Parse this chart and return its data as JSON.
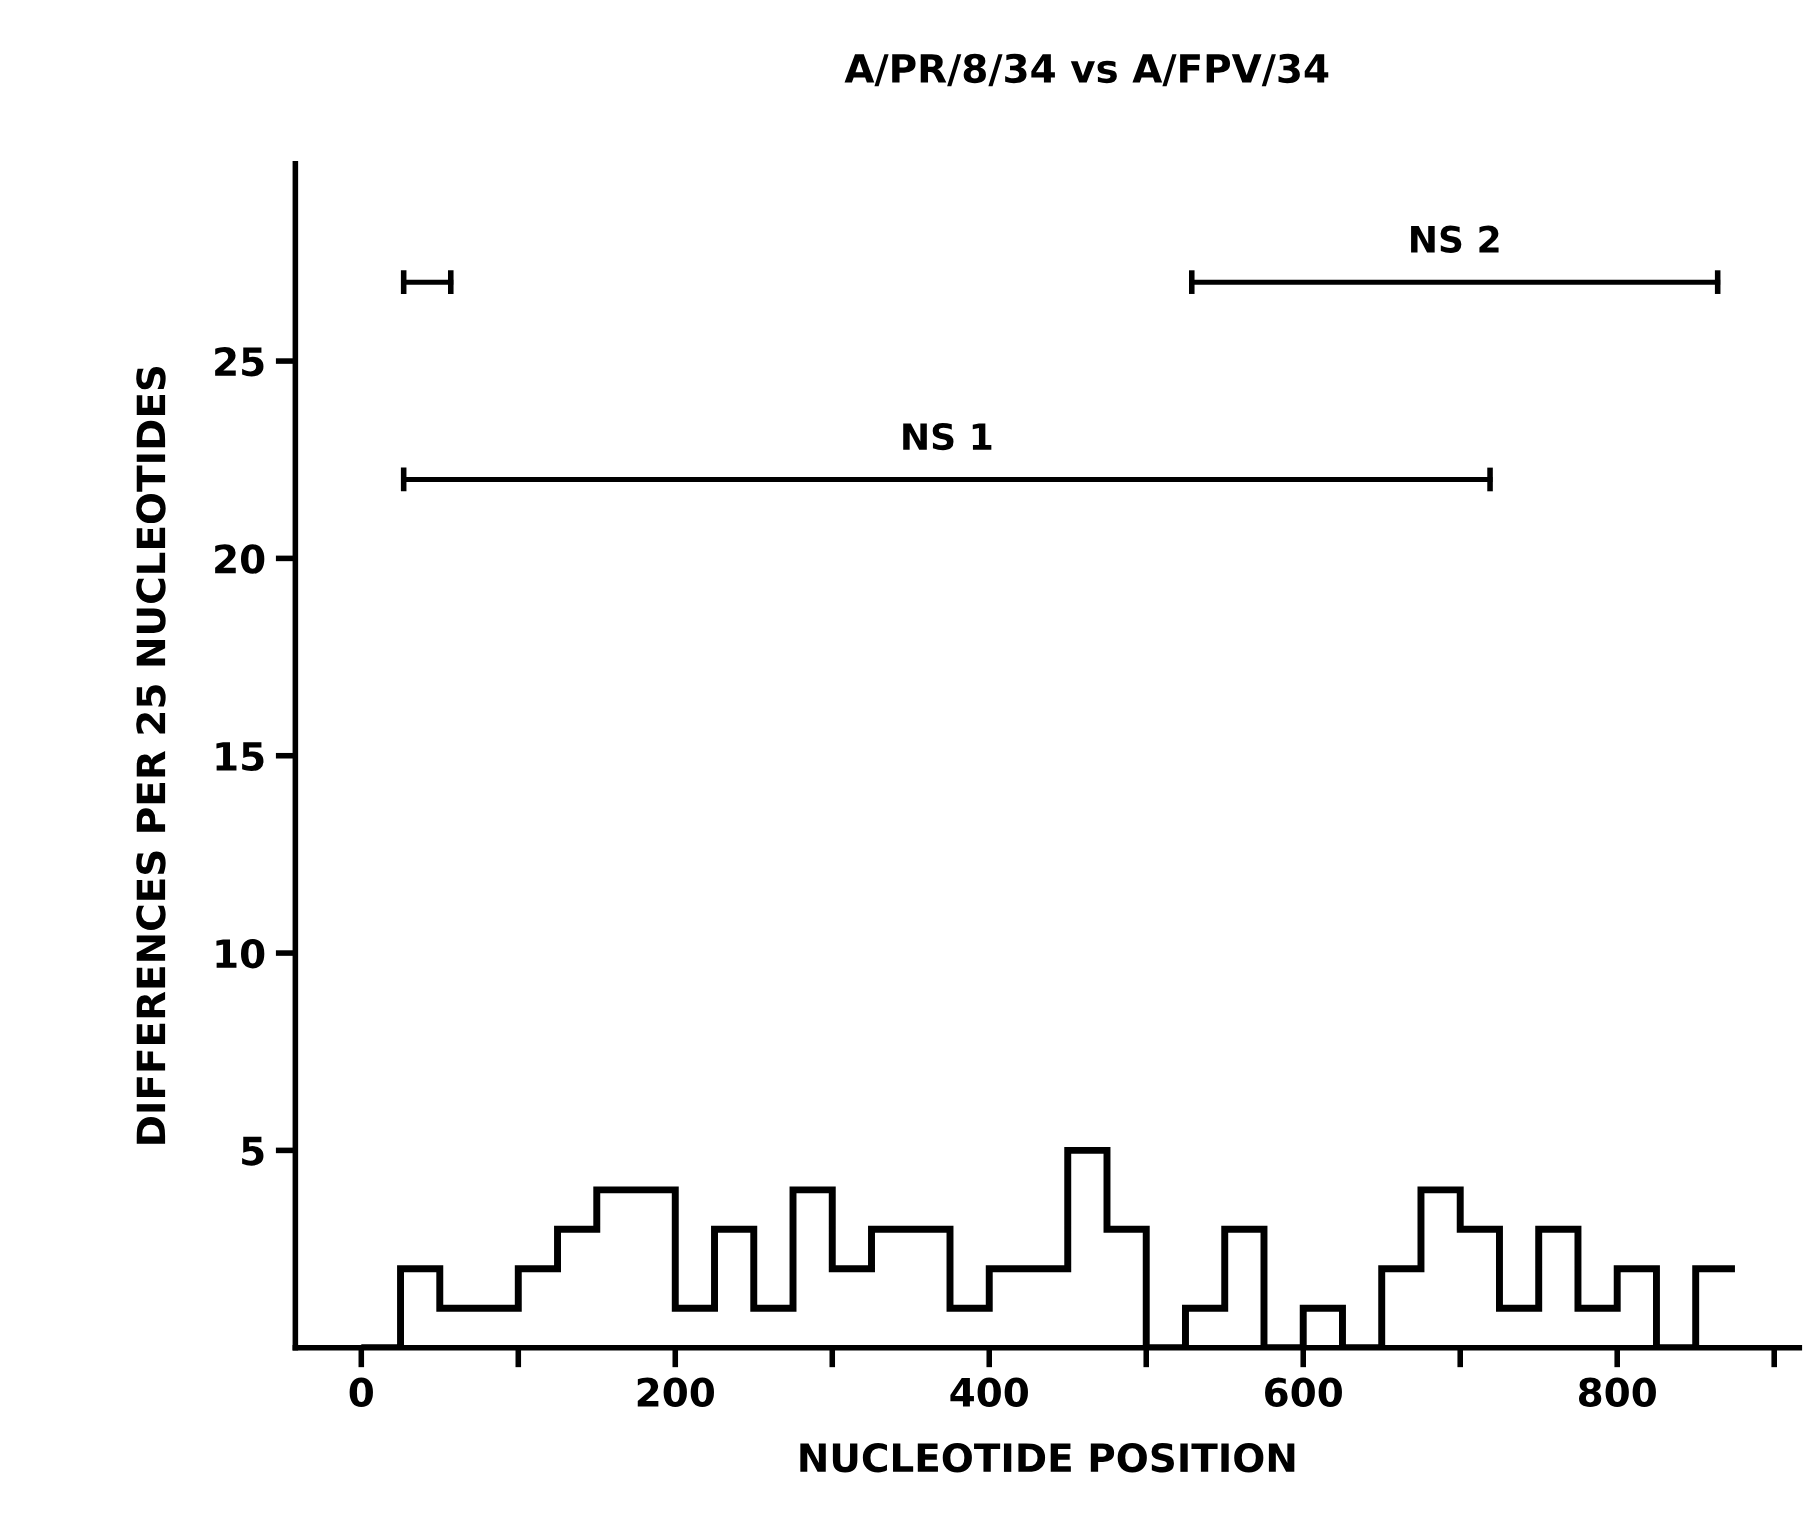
{
  "chart_data": {
    "type": "histogram",
    "title": "A/PR/8/34 vs A/FPV/34",
    "xlabel": "NUCLEOTIDE POSITION",
    "ylabel": "DIFFERENCES PER 25 NUCLEOTIDES",
    "color": "#000000",
    "bins": [
      0,
      25,
      50,
      75,
      100,
      125,
      150,
      175,
      200,
      225,
      250,
      275,
      300,
      325,
      350,
      375,
      400,
      425,
      450,
      475,
      500,
      525,
      550,
      575,
      600,
      625,
      650,
      675,
      700,
      725,
      750,
      775,
      800,
      825,
      850,
      875
    ],
    "values": [
      0,
      2,
      1,
      1,
      2,
      3,
      4,
      4,
      1,
      3,
      1,
      4,
      2,
      3,
      3,
      1,
      2,
      2,
      5,
      3,
      0,
      1,
      3,
      0,
      1,
      0,
      2,
      4,
      3,
      1,
      3,
      1,
      2,
      0,
      2
    ],
    "series": [
      {
        "type": "line",
        "color": "#000000",
        "x": [
          27,
          57
        ],
        "values": [
          27,
          27
        ]
      },
      {
        "type": "line",
        "name": "NS 1",
        "color": "#000000",
        "x": [
          27,
          719
        ],
        "values": [
          22,
          22
        ]
      },
      {
        "type": "line",
        "name": "NS 2",
        "color": "#000000",
        "x": [
          529,
          864
        ],
        "values": [
          27,
          27
        ]
      }
    ],
    "xlim": [
      -42,
      916
    ],
    "ylim": [
      0,
      30
    ],
    "xticks": [
      0,
      {
        "value": 100,
        "label": null
      },
      200,
      {
        "value": 300,
        "label": null
      },
      400,
      {
        "value": 500,
        "label": null
      },
      600,
      {
        "value": 700,
        "label": null
      },
      800,
      {
        "value": 900,
        "label": null
      }
    ],
    "yticks": [
      5,
      10,
      15,
      20,
      25
    ],
    "grid": false,
    "legend": false
  }
}
